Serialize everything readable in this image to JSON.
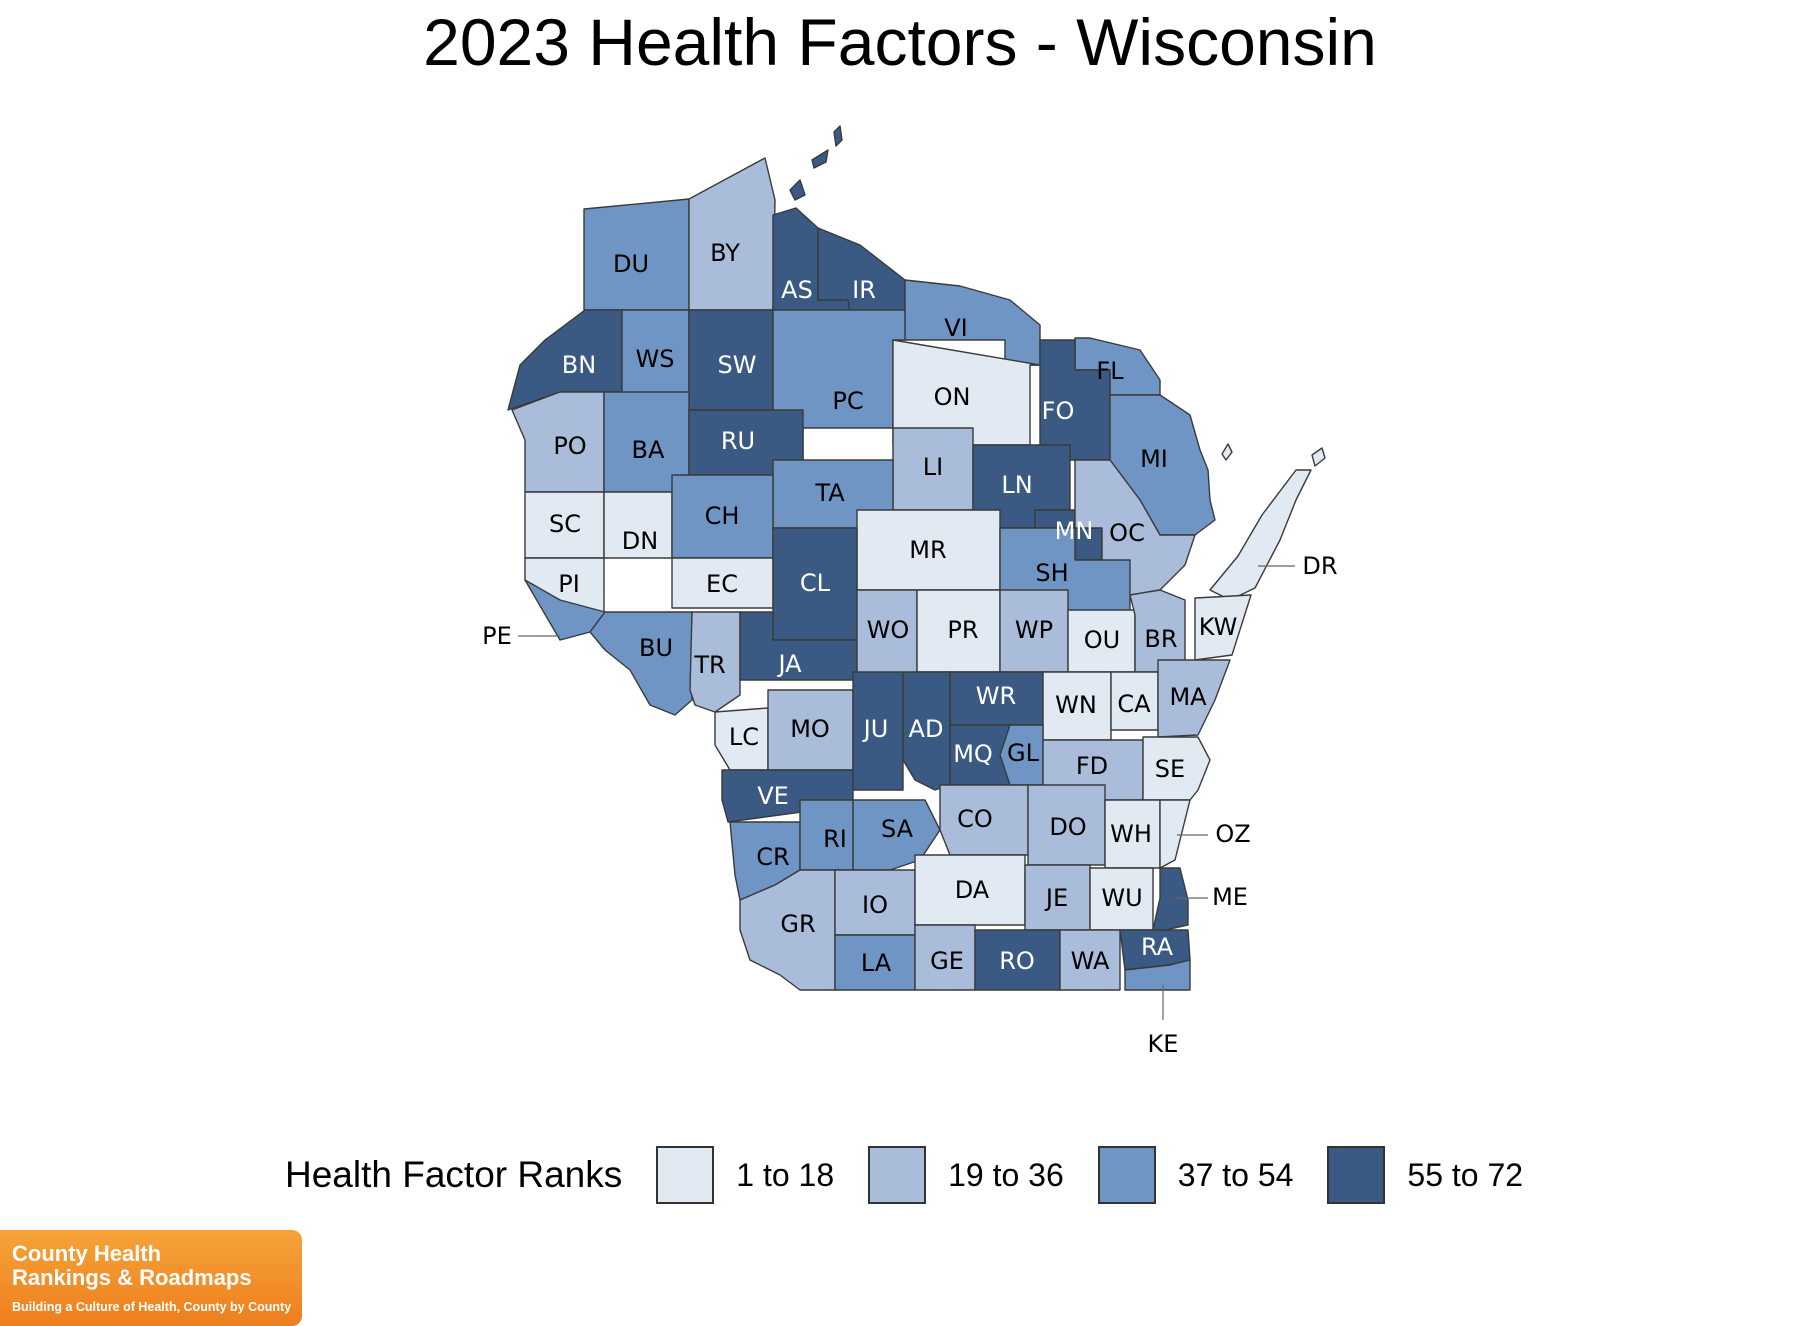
{
  "title": "2023 Health Factors - Wisconsin",
  "legend": {
    "title": "Health Factor Ranks",
    "items": [
      {
        "label": "1 to 18",
        "color": "#e1e9f3"
      },
      {
        "label": "19 to 36",
        "color": "#a9bdda"
      },
      {
        "label": "37 to 54",
        "color": "#6f95c4"
      },
      {
        "label": "55 to 72",
        "color": "#3a5a84"
      }
    ]
  },
  "logo": {
    "line1": "County Health",
    "line2": "Rankings & Roadmaps",
    "line3": "Building a Culture of Health, County by County"
  },
  "counties": [
    {
      "abbr": "DU",
      "bin": 2
    },
    {
      "abbr": "BY",
      "bin": 1
    },
    {
      "abbr": "AS",
      "bin": 3
    },
    {
      "abbr": "IR",
      "bin": 3
    },
    {
      "abbr": "VI",
      "bin": 2
    },
    {
      "abbr": "FL",
      "bin": 2
    },
    {
      "abbr": "BN",
      "bin": 3
    },
    {
      "abbr": "WS",
      "bin": 2
    },
    {
      "abbr": "SW",
      "bin": 3
    },
    {
      "abbr": "PC",
      "bin": 2
    },
    {
      "abbr": "ON",
      "bin": 0
    },
    {
      "abbr": "FO",
      "bin": 3
    },
    {
      "abbr": "MI",
      "bin": 2
    },
    {
      "abbr": "PO",
      "bin": 1
    },
    {
      "abbr": "BA",
      "bin": 2
    },
    {
      "abbr": "RU",
      "bin": 3
    },
    {
      "abbr": "LI",
      "bin": 1
    },
    {
      "abbr": "LN",
      "bin": 3
    },
    {
      "abbr": "TA",
      "bin": 2
    },
    {
      "abbr": "SC",
      "bin": 0
    },
    {
      "abbr": "DN",
      "bin": 0
    },
    {
      "abbr": "CH",
      "bin": 2
    },
    {
      "abbr": "MR",
      "bin": 0
    },
    {
      "abbr": "MN",
      "bin": 3
    },
    {
      "abbr": "OC",
      "bin": 1
    },
    {
      "abbr": "SH",
      "bin": 2
    },
    {
      "abbr": "PI",
      "bin": 0
    },
    {
      "abbr": "EC",
      "bin": 0
    },
    {
      "abbr": "CL",
      "bin": 3
    },
    {
      "abbr": "DR",
      "bin": 0
    },
    {
      "abbr": "KW",
      "bin": 0
    },
    {
      "abbr": "PE",
      "bin": 2
    },
    {
      "abbr": "BU",
      "bin": 2
    },
    {
      "abbr": "TR",
      "bin": 1
    },
    {
      "abbr": "JA",
      "bin": 3
    },
    {
      "abbr": "WO",
      "bin": 1
    },
    {
      "abbr": "PR",
      "bin": 0
    },
    {
      "abbr": "WP",
      "bin": 1
    },
    {
      "abbr": "OU",
      "bin": 0
    },
    {
      "abbr": "BR",
      "bin": 1
    },
    {
      "abbr": "LC",
      "bin": 0
    },
    {
      "abbr": "MO",
      "bin": 1
    },
    {
      "abbr": "JU",
      "bin": 3
    },
    {
      "abbr": "AD",
      "bin": 3
    },
    {
      "abbr": "WR",
      "bin": 3
    },
    {
      "abbr": "WN",
      "bin": 0
    },
    {
      "abbr": "CA",
      "bin": 0
    },
    {
      "abbr": "MA",
      "bin": 1
    },
    {
      "abbr": "MQ",
      "bin": 3
    },
    {
      "abbr": "GL",
      "bin": 2
    },
    {
      "abbr": "FD",
      "bin": 1
    },
    {
      "abbr": "SE",
      "bin": 0
    },
    {
      "abbr": "VE",
      "bin": 3
    },
    {
      "abbr": "CR",
      "bin": 2
    },
    {
      "abbr": "RI",
      "bin": 2
    },
    {
      "abbr": "SA",
      "bin": 2
    },
    {
      "abbr": "CO",
      "bin": 1
    },
    {
      "abbr": "DO",
      "bin": 1
    },
    {
      "abbr": "WH",
      "bin": 0
    },
    {
      "abbr": "OZ",
      "bin": 0
    },
    {
      "abbr": "GR",
      "bin": 1
    },
    {
      "abbr": "IO",
      "bin": 1
    },
    {
      "abbr": "DA",
      "bin": 0
    },
    {
      "abbr": "JE",
      "bin": 1
    },
    {
      "abbr": "WU",
      "bin": 0
    },
    {
      "abbr": "ME",
      "bin": 3
    },
    {
      "abbr": "LA",
      "bin": 2
    },
    {
      "abbr": "GE",
      "bin": 1
    },
    {
      "abbr": "RO",
      "bin": 3
    },
    {
      "abbr": "WA",
      "bin": 1
    },
    {
      "abbr": "RA",
      "bin": 3
    },
    {
      "abbr": "KE",
      "bin": 2
    }
  ]
}
